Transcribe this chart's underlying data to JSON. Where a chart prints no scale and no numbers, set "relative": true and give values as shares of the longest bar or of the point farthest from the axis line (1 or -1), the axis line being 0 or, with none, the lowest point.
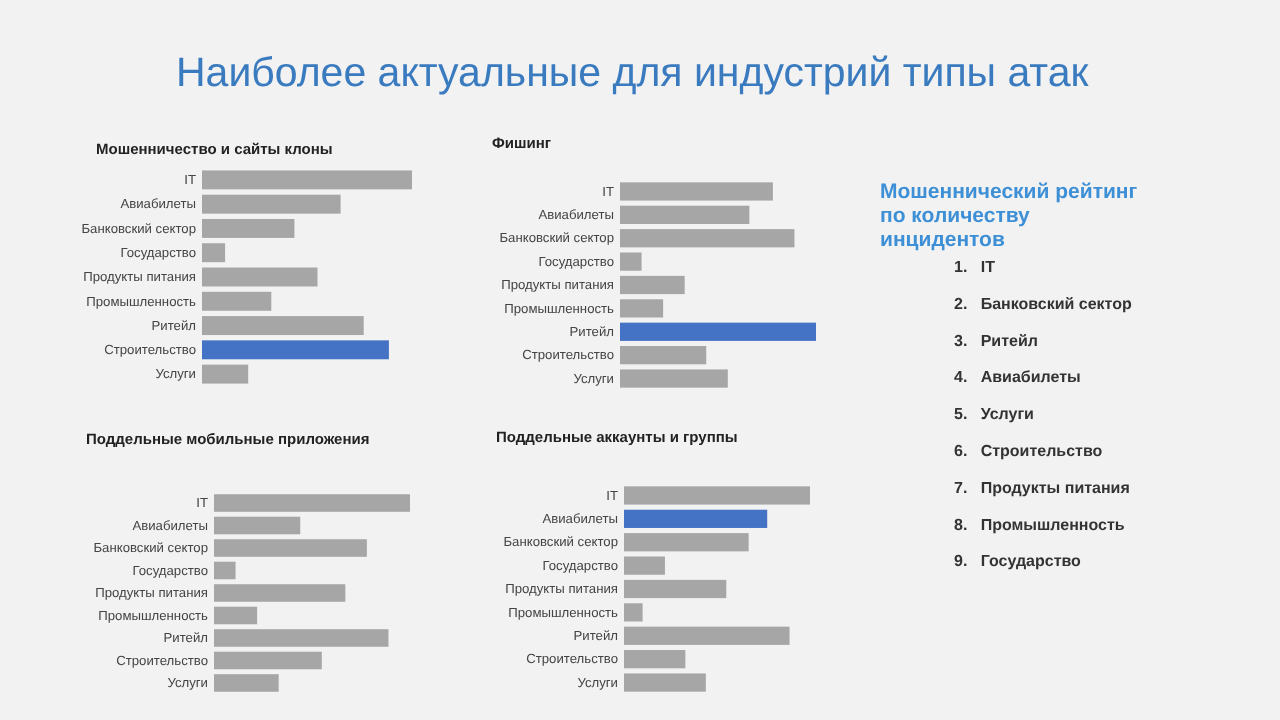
{
  "chart_data": [
    {
      "type": "other",
      "title": "Наиболее актуальные для индустрий типы атак",
      "subtitle": "Мошеннический рейтинг по количеству инцидентов",
      "annotations": [
        "1. IT",
        "2. Банковский сектор",
        "3. Ритейл",
        "4. Авиабилеты",
        "5. Услуги",
        "6. Строительство",
        "7. Продукты питания",
        "8. Промышленность",
        "9. Государство"
      ]
    },
    {
      "type": "bar",
      "orientation": "horizontal",
      "relative": true,
      "title": "Мошенничество  и сайты клоны",
      "categories": [
        "IT",
        "Авиабилеты",
        "Банковский сектор",
        "Государство",
        "Продукты питания",
        "Промышленность",
        "Ритейл",
        "Строительство",
        "Услуги"
      ],
      "values": [
        1,
        0.66,
        0.44,
        0.11,
        0.55,
        0.33,
        0.77,
        0.89,
        0.22
      ],
      "colors": [
        "#a6a6a6",
        "#a6a6a6",
        "#a6a6a6",
        "#a6a6a6",
        "#a6a6a6",
        "#a6a6a6",
        "#a6a6a6",
        "#4472c4",
        "#a6a6a6"
      ]
    },
    {
      "type": "bar",
      "orientation": "horizontal",
      "relative": true,
      "title": "Фишинг",
      "categories": [
        "IT",
        "Авиабилеты",
        "Банковский сектор",
        "Государство",
        "Продукты питания",
        "Промышленность",
        "Ритейл",
        "Строительство",
        "Услуги"
      ],
      "values": [
        0.78,
        0.66,
        0.89,
        0.11,
        0.33,
        0.22,
        1,
        0.44,
        0.55
      ],
      "colors": [
        "#a6a6a6",
        "#a6a6a6",
        "#a6a6a6",
        "#a6a6a6",
        "#a6a6a6",
        "#a6a6a6",
        "#4472c4",
        "#a6a6a6",
        "#a6a6a6"
      ]
    },
    {
      "type": "bar",
      "orientation": "horizontal",
      "relative": true,
      "title": "Поддельные мобильные  приложения",
      "categories": [
        "IT",
        "Авиабилеты",
        "Банковский сектор",
        "Государство",
        "Продукты питания",
        "Промышленность",
        "Ритейл",
        "Строительство",
        "Услуги"
      ],
      "values": [
        1,
        0.44,
        0.78,
        0.11,
        0.67,
        0.22,
        0.89,
        0.55,
        0.33
      ],
      "colors": [
        "#a6a6a6",
        "#a6a6a6",
        "#a6a6a6",
        "#a6a6a6",
        "#a6a6a6",
        "#a6a6a6",
        "#a6a6a6",
        "#a6a6a6",
        "#a6a6a6"
      ]
    },
    {
      "type": "bar",
      "orientation": "horizontal",
      "relative": true,
      "title": "Поддельные аккаунты и группы",
      "categories": [
        "IT",
        "Авиабилеты",
        "Банковский сектор",
        "Государство",
        "Продукты питания",
        "Промышленность",
        "Ритейл",
        "Строительство",
        "Услуги"
      ],
      "values": [
        1,
        0.77,
        0.67,
        0.22,
        0.55,
        0.1,
        0.89,
        0.33,
        0.44
      ],
      "colors": [
        "#a6a6a6",
        "#4472c4",
        "#a6a6a6",
        "#a6a6a6",
        "#a6a6a6",
        "#a6a6a6",
        "#a6a6a6",
        "#a6a6a6",
        "#a6a6a6"
      ]
    }
  ]
}
